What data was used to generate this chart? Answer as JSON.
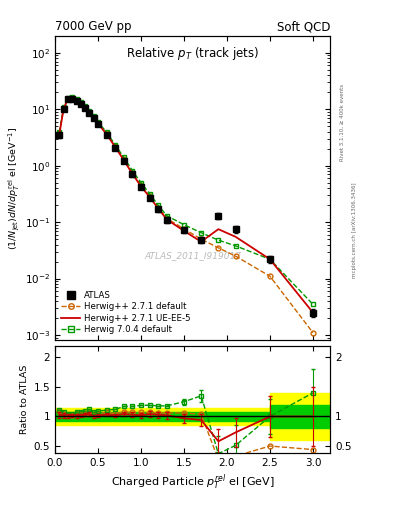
{
  "header_left": "7000 GeV pp",
  "header_right": "Soft QCD",
  "watermark": "ATLAS_2011_I919017",
  "right_label_top": "Rivet 3.1.10, ≥ 400k events",
  "right_label_bot": "mcplots.cern.ch [arXiv:1306.3436]",
  "atlas_x": [
    0.05,
    0.1,
    0.15,
    0.2,
    0.25,
    0.3,
    0.35,
    0.4,
    0.45,
    0.5,
    0.6,
    0.7,
    0.8,
    0.9,
    1.0,
    1.1,
    1.2,
    1.3,
    1.5,
    1.7,
    1.9,
    2.1,
    2.5,
    3.0
  ],
  "atlas_y": [
    3.5,
    10.0,
    15.0,
    15.5,
    14.0,
    12.5,
    10.5,
    8.5,
    7.0,
    5.5,
    3.5,
    2.1,
    1.2,
    0.7,
    0.42,
    0.27,
    0.17,
    0.11,
    0.072,
    0.048,
    0.13,
    0.075,
    0.022,
    0.0025
  ],
  "atlas_yerr": [
    0.4,
    0.7,
    0.9,
    0.9,
    0.8,
    0.7,
    0.6,
    0.5,
    0.45,
    0.35,
    0.25,
    0.18,
    0.09,
    0.06,
    0.04,
    0.025,
    0.018,
    0.012,
    0.008,
    0.006,
    0.018,
    0.01,
    0.003,
    0.0004
  ],
  "hw271_x": [
    0.05,
    0.1,
    0.15,
    0.2,
    0.25,
    0.3,
    0.35,
    0.4,
    0.45,
    0.5,
    0.6,
    0.7,
    0.8,
    0.9,
    1.0,
    1.1,
    1.2,
    1.3,
    1.5,
    1.7,
    1.9,
    2.1,
    2.5,
    3.0
  ],
  "hw271_y": [
    3.8,
    10.5,
    15.5,
    16.0,
    14.5,
    13.0,
    11.0,
    9.0,
    7.2,
    5.8,
    3.75,
    2.2,
    1.3,
    0.75,
    0.45,
    0.29,
    0.18,
    0.116,
    0.076,
    0.05,
    0.035,
    0.025,
    0.011,
    0.0011
  ],
  "hw271ue_x": [
    0.05,
    0.1,
    0.15,
    0.2,
    0.25,
    0.3,
    0.35,
    0.4,
    0.45,
    0.5,
    0.6,
    0.7,
    0.8,
    0.9,
    1.0,
    1.1,
    1.2,
    1.3,
    1.5,
    1.7,
    1.9,
    2.1,
    2.5,
    3.0
  ],
  "hw271ue_y": [
    3.6,
    10.2,
    15.2,
    15.8,
    14.2,
    12.8,
    10.8,
    8.8,
    7.0,
    5.6,
    3.6,
    2.15,
    1.25,
    0.72,
    0.43,
    0.28,
    0.175,
    0.112,
    0.07,
    0.045,
    0.075,
    0.055,
    0.022,
    0.0025
  ],
  "hw704_x": [
    0.05,
    0.1,
    0.15,
    0.2,
    0.25,
    0.3,
    0.35,
    0.4,
    0.45,
    0.5,
    0.6,
    0.7,
    0.8,
    0.9,
    1.0,
    1.1,
    1.2,
    1.3,
    1.5,
    1.7,
    1.9,
    2.1,
    2.5,
    3.0
  ],
  "hw704_y": [
    3.9,
    10.8,
    15.8,
    16.3,
    15.0,
    13.5,
    11.5,
    9.5,
    7.5,
    6.0,
    3.9,
    2.35,
    1.4,
    0.82,
    0.5,
    0.32,
    0.2,
    0.13,
    0.09,
    0.065,
    0.048,
    0.038,
    0.022,
    0.0035
  ],
  "ratio_hw271_x": [
    0.05,
    0.1,
    0.15,
    0.2,
    0.25,
    0.3,
    0.35,
    0.4,
    0.45,
    0.5,
    0.6,
    0.7,
    0.8,
    0.9,
    1.0,
    1.1,
    1.2,
    1.3,
    1.5,
    1.7,
    1.9,
    2.1,
    2.5,
    3.0
  ],
  "ratio_hw271_y": [
    1.09,
    1.05,
    1.03,
    1.03,
    1.04,
    1.04,
    1.05,
    1.06,
    1.03,
    1.05,
    1.07,
    1.05,
    1.08,
    1.07,
    1.07,
    1.07,
    1.06,
    1.06,
    1.06,
    1.04,
    0.27,
    0.33,
    0.5,
    0.44
  ],
  "ratio_hw271_yerr": [
    0.0,
    0.0,
    0.0,
    0.0,
    0.0,
    0.0,
    0.0,
    0.0,
    0.0,
    0.0,
    0.0,
    0.0,
    0.0,
    0.0,
    0.0,
    0.0,
    0.0,
    0.0,
    0.0,
    0.0,
    0.0,
    0.0,
    0.0,
    0.0
  ],
  "ratio_hw271ue_x": [
    0.05,
    0.1,
    0.15,
    0.2,
    0.25,
    0.3,
    0.35,
    0.4,
    0.45,
    0.5,
    0.6,
    0.7,
    0.8,
    0.9,
    1.0,
    1.1,
    1.2,
    1.3,
    1.5,
    1.7,
    1.9,
    2.1,
    2.5,
    3.0
  ],
  "ratio_hw271ue_y": [
    1.03,
    1.02,
    1.01,
    1.02,
    1.01,
    1.02,
    1.03,
    1.04,
    1.0,
    1.02,
    1.03,
    1.02,
    1.04,
    1.03,
    1.02,
    1.04,
    1.03,
    1.02,
    0.97,
    0.94,
    0.58,
    0.73,
    1.0,
    1.0
  ],
  "ratio_hw271ue_yerr": [
    0.05,
    0.04,
    0.03,
    0.03,
    0.03,
    0.03,
    0.03,
    0.03,
    0.03,
    0.03,
    0.03,
    0.03,
    0.04,
    0.04,
    0.04,
    0.05,
    0.05,
    0.06,
    0.08,
    0.1,
    0.2,
    0.25,
    0.35,
    0.5
  ],
  "ratio_hw704_x": [
    0.05,
    0.1,
    0.15,
    0.2,
    0.25,
    0.3,
    0.35,
    0.4,
    0.45,
    0.5,
    0.6,
    0.7,
    0.8,
    0.9,
    1.0,
    1.1,
    1.2,
    1.3,
    1.5,
    1.7,
    1.9,
    2.1,
    2.5,
    3.0
  ],
  "ratio_hw704_y": [
    1.11,
    1.08,
    1.05,
    1.05,
    1.07,
    1.08,
    1.1,
    1.12,
    1.07,
    1.09,
    1.11,
    1.12,
    1.17,
    1.17,
    1.19,
    1.19,
    1.18,
    1.18,
    1.25,
    1.35,
    0.37,
    0.51,
    1.0,
    1.4
  ],
  "ratio_hw704_yerr": [
    0.0,
    0.0,
    0.0,
    0.0,
    0.0,
    0.0,
    0.0,
    0.0,
    0.0,
    0.0,
    0.0,
    0.0,
    0.0,
    0.0,
    0.0,
    0.0,
    0.0,
    0.0,
    0.05,
    0.1,
    0.3,
    0.35,
    0.3,
    0.4
  ],
  "band_yellow": 0.15,
  "band_green": 0.07,
  "color_atlas": "#000000",
  "color_hw271": "#cc6600",
  "color_hw271ue": "#cc0000",
  "color_hw704": "#009900",
  "color_yellow": "#ffff00",
  "color_green": "#00cc00",
  "xlim": [
    0.0,
    3.2
  ],
  "ylim_main": [
    0.0008,
    200
  ],
  "ylim_ratio": [
    0.38,
    2.2
  ]
}
